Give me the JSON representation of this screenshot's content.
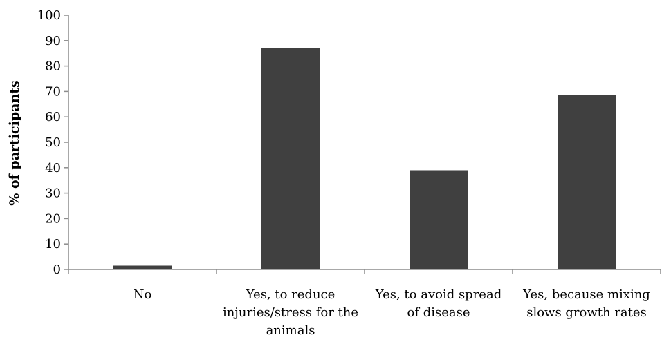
{
  "chart_data": {
    "type": "bar",
    "categories": [
      [
        "No"
      ],
      [
        "Yes, to reduce",
        "injuries/stress for the",
        "animals"
      ],
      [
        "Yes, to avoid spread",
        "of disease"
      ],
      [
        "Yes, because mixing",
        "slows growth rates"
      ]
    ],
    "values": [
      1.5,
      87,
      39,
      68.5
    ],
    "ylabel": "% of participants",
    "ylim": [
      0,
      100
    ],
    "yticks": [
      0,
      10,
      20,
      30,
      40,
      50,
      60,
      70,
      80,
      90,
      100
    ],
    "grid": false,
    "bar_color": "#404040",
    "axis_color": "#8c8c8c"
  }
}
